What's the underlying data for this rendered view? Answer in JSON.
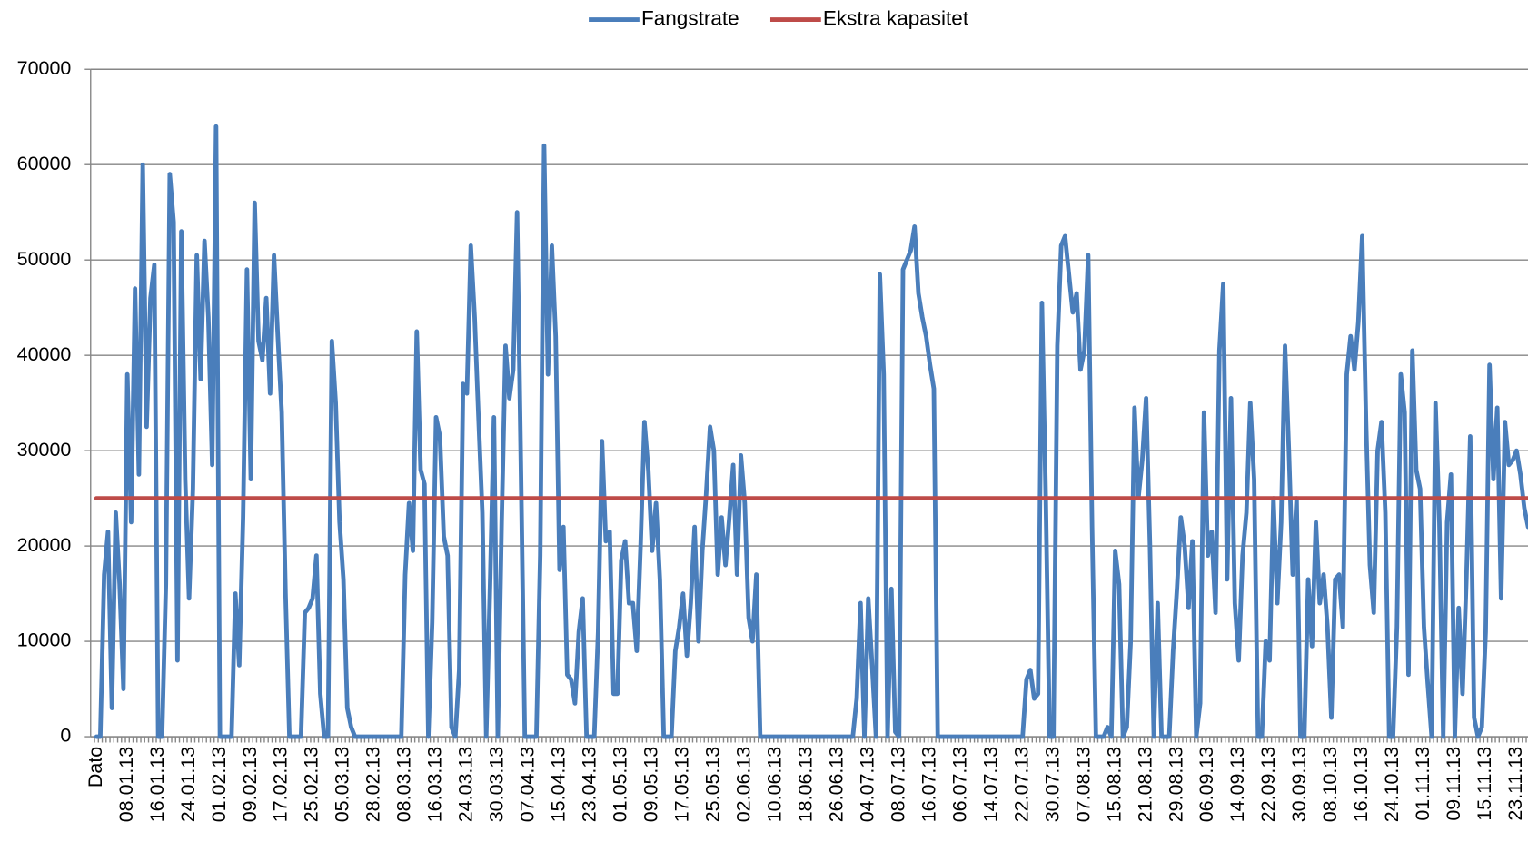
{
  "chart_data": {
    "type": "line",
    "categories": [
      "Dato",
      null,
      null,
      null,
      null,
      null,
      null,
      null,
      "08.01.13",
      null,
      null,
      null,
      null,
      null,
      null,
      null,
      "16.01.13",
      null,
      null,
      null,
      null,
      null,
      null,
      null,
      "24.01.13",
      null,
      null,
      null,
      null,
      null,
      null,
      null,
      "01.02.13",
      null,
      null,
      null,
      null,
      null,
      null,
      null,
      "09.02.13",
      null,
      null,
      null,
      null,
      null,
      null,
      null,
      "17.02.13",
      null,
      null,
      null,
      null,
      null,
      null,
      null,
      "25.02.13",
      null,
      null,
      null,
      null,
      null,
      null,
      null,
      "05.03.13",
      null,
      null,
      null,
      null,
      null,
      null,
      null,
      "28.02.13",
      null,
      null,
      null,
      null,
      null,
      null,
      null,
      "08.03.13",
      null,
      null,
      null,
      null,
      null,
      null,
      null,
      "16.03.13",
      null,
      null,
      null,
      null,
      null,
      null,
      null,
      "24.03.13",
      null,
      null,
      null,
      null,
      null,
      null,
      null,
      "30.03.13",
      null,
      null,
      null,
      null,
      null,
      null,
      null,
      "07.04.13",
      null,
      null,
      null,
      null,
      null,
      null,
      null,
      "15.04.13",
      null,
      null,
      null,
      null,
      null,
      null,
      null,
      "23.04.13",
      null,
      null,
      null,
      null,
      null,
      null,
      null,
      "01.05.13",
      null,
      null,
      null,
      null,
      null,
      null,
      null,
      "09.05.13",
      null,
      null,
      null,
      null,
      null,
      null,
      null,
      "17.05.13",
      null,
      null,
      null,
      null,
      null,
      null,
      null,
      "25.05.13",
      null,
      null,
      null,
      null,
      null,
      null,
      null,
      "02.06.13",
      null,
      null,
      null,
      null,
      null,
      null,
      null,
      "10.06.13",
      null,
      null,
      null,
      null,
      null,
      null,
      null,
      "18.06.13",
      null,
      null,
      null,
      null,
      null,
      null,
      null,
      "26.06.13",
      null,
      null,
      null,
      null,
      null,
      null,
      null,
      "04.07.13",
      null,
      null,
      null,
      null,
      null,
      null,
      null,
      "08.07.13",
      null,
      null,
      null,
      null,
      null,
      null,
      null,
      "16.07.13",
      null,
      null,
      null,
      null,
      null,
      null,
      null,
      "06.07.13",
      null,
      null,
      null,
      null,
      null,
      null,
      null,
      "14.07.13",
      null,
      null,
      null,
      null,
      null,
      null,
      null,
      "22.07.13",
      null,
      null,
      null,
      null,
      null,
      null,
      null,
      "30.07.13",
      null,
      null,
      null,
      null,
      null,
      null,
      null,
      "07.08.13",
      null,
      null,
      null,
      null,
      null,
      null,
      null,
      "15.08.13",
      null,
      null,
      null,
      null,
      null,
      null,
      null,
      "21.08.13",
      null,
      null,
      null,
      null,
      null,
      null,
      null,
      "29.08.13",
      null,
      null,
      null,
      null,
      null,
      null,
      null,
      "06.09.13",
      null,
      null,
      null,
      null,
      null,
      null,
      null,
      "14.09.13",
      null,
      null,
      null,
      null,
      null,
      null,
      null,
      "22.09.13",
      null,
      null,
      null,
      null,
      null,
      null,
      null,
      "30.09.13",
      null,
      null,
      null,
      null,
      null,
      null,
      null,
      "08.10.13",
      null,
      null,
      null,
      null,
      null,
      null,
      null,
      "16.10.13",
      null,
      null,
      null,
      null,
      null,
      null,
      null,
      "24.10.13",
      null,
      null,
      null,
      null,
      null,
      null,
      null,
      "01.11.13",
      null,
      null,
      null,
      null,
      null,
      null,
      null,
      "09.11.13",
      null,
      null,
      null,
      null,
      null,
      null,
      null,
      "15.11.13",
      null,
      null,
      null,
      null,
      null,
      null,
      null,
      "23.11.13",
      null,
      null,
      null
    ],
    "series": [
      {
        "name": "Fangstrate",
        "color": "#4a7ebb",
        "values": [
          0,
          0,
          17000,
          21500,
          3000,
          23500,
          16000,
          5000,
          38000,
          22500,
          47000,
          27500,
          60000,
          32500,
          46000,
          49500,
          0,
          0,
          16000,
          59000,
          54000,
          8000,
          53000,
          27000,
          14500,
          26000,
          50500,
          37500,
          52000,
          44000,
          28500,
          64000,
          0,
          0,
          0,
          0,
          15000,
          7500,
          23000,
          49000,
          27000,
          56000,
          41500,
          39500,
          46000,
          36000,
          50500,
          42000,
          34000,
          15000,
          0,
          0,
          0,
          0,
          13000,
          13500,
          14500,
          19000,
          4500,
          0,
          0,
          41500,
          35000,
          22500,
          16500,
          3000,
          1000,
          0,
          0,
          0,
          0,
          0,
          0,
          0,
          0,
          0,
          0,
          0,
          0,
          0,
          17000,
          24500,
          19500,
          42500,
          28000,
          26500,
          0,
          12000,
          33500,
          31500,
          21000,
          19000,
          1000,
          0,
          7000,
          37000,
          36000,
          51500,
          44000,
          33500,
          23500,
          0,
          16000,
          33500,
          0,
          22500,
          41000,
          35500,
          38500,
          55000,
          28000,
          0,
          0,
          0,
          0,
          19000,
          62000,
          38000,
          51500,
          42000,
          17500,
          22000,
          6500,
          6000,
          3500,
          11000,
          14500,
          0,
          0,
          0,
          11000,
          31000,
          20500,
          21500,
          4500,
          4500,
          18500,
          20500,
          14000,
          14000,
          9000,
          20000,
          33000,
          28000,
          19500,
          24500,
          16500,
          0,
          0,
          0,
          9000,
          11500,
          15000,
          8500,
          14000,
          22000,
          10000,
          19500,
          25500,
          32500,
          30000,
          17000,
          23000,
          18000,
          23000,
          28500,
          17000,
          29500,
          24500,
          12500,
          10000,
          17000,
          0,
          0,
          0,
          0,
          0,
          0,
          0,
          0,
          0,
          0,
          0,
          0,
          0,
          0,
          0,
          0,
          0,
          0,
          0,
          0,
          0,
          0,
          0,
          0,
          0,
          4000,
          14000,
          0,
          14500,
          7500,
          0,
          48500,
          38000,
          0,
          15500,
          500,
          0,
          49000,
          50000,
          51000,
          53500,
          46500,
          44000,
          42000,
          39000,
          36500,
          0,
          0,
          0,
          0,
          0,
          0,
          0,
          0,
          0,
          0,
          0,
          0,
          0,
          0,
          0,
          0,
          0,
          0,
          0,
          0,
          0,
          0,
          0,
          6000,
          7000,
          4000,
          4500,
          45500,
          25000,
          0,
          0,
          41000,
          51500,
          52500,
          48500,
          44500,
          46500,
          38500,
          40500,
          50500,
          22000,
          0,
          0,
          0,
          1000,
          0,
          19500,
          16000,
          0,
          1000,
          10000,
          34500,
          25000,
          29000,
          35500,
          20000,
          0,
          14000,
          0,
          0,
          0,
          9000,
          15500,
          23000,
          20000,
          13500,
          20500,
          0,
          3500,
          34000,
          19000,
          21500,
          13000,
          40500,
          47500,
          16500,
          35500,
          14000,
          8000,
          19000,
          23500,
          35000,
          27000,
          0,
          0,
          10000,
          8000,
          25000,
          14000,
          22500,
          41000,
          30000,
          17000,
          25000,
          0,
          0,
          16500,
          9500,
          22500,
          14000,
          17000,
          11500,
          2000,
          16500,
          17000,
          11500,
          38000,
          42000,
          38500,
          43500,
          52500,
          33000,
          18000,
          13000,
          30000,
          33000,
          23500,
          0,
          0,
          11500,
          38000,
          34000,
          6500,
          40500,
          28000,
          26000,
          11500,
          5500,
          0,
          35000,
          22500,
          0,
          22500,
          27500,
          0,
          13500,
          4500,
          16500,
          31500,
          2000,
          0,
          1000,
          11000,
          39000,
          27000,
          34500,
          14500,
          33000,
          28500,
          29000,
          30000,
          27500,
          24000,
          22000
        ]
      },
      {
        "name": "Ekstra kapasitet",
        "color": "#be4b48",
        "value": 25000
      }
    ],
    "ylim": [
      0,
      70000
    ],
    "yticks": [
      0,
      10000,
      20000,
      30000,
      40000,
      50000,
      60000,
      70000
    ],
    "grid": true,
    "legend": "top"
  }
}
